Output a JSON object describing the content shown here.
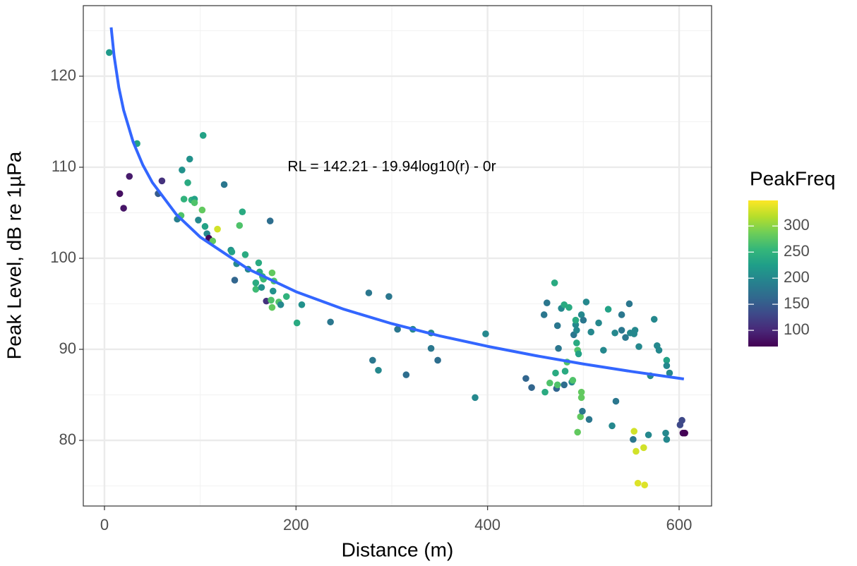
{
  "chart_data": {
    "type": "scatter",
    "x_label": "Distance (m)",
    "y_label": "Peak Level, dB re 1µPa",
    "annotation": "RL = 142.21 - 19.94log10(r) - 0r",
    "xlim": [
      -22.1,
      633.9
    ],
    "ylim": [
      72.79,
      127.75
    ],
    "xticks": [
      0,
      200,
      400,
      600
    ],
    "yticks": [
      80,
      90,
      100,
      110,
      120
    ],
    "xminor": [
      100,
      300,
      500
    ],
    "yminor": [
      75,
      85,
      95,
      105,
      115,
      125
    ],
    "grid": true,
    "x": [
      5,
      16,
      20,
      26,
      34,
      56,
      60,
      76,
      80,
      81,
      83,
      87,
      89,
      91,
      94,
      94,
      98,
      102,
      103,
      105,
      107,
      109,
      113,
      118,
      125,
      132,
      133,
      136,
      138,
      141,
      144,
      147,
      150,
      158,
      158,
      161,
      162,
      164,
      165,
      166,
      169,
      173,
      174,
      175,
      175,
      176,
      177,
      182,
      184,
      190,
      201,
      206,
      236,
      276,
      280,
      286,
      297,
      306,
      315,
      322,
      341,
      341,
      348,
      387,
      398,
      440,
      446,
      459,
      460,
      462,
      465,
      470,
      471,
      472,
      473,
      473,
      474,
      477,
      480,
      480,
      481,
      483,
      485,
      488,
      489,
      490,
      492,
      492,
      493,
      493,
      494,
      494,
      495,
      497,
      498,
      498,
      498,
      499,
      500,
      503,
      506,
      508,
      516,
      521,
      526,
      530,
      533,
      534,
      540,
      540,
      544,
      548,
      549,
      552,
      553,
      553,
      554,
      555,
      557,
      558,
      563,
      564,
      568,
      570,
      574,
      577,
      579,
      586,
      587,
      587,
      587,
      590,
      601,
      603,
      604,
      606
    ],
    "values": [
      122.6,
      107.1,
      105.5,
      109.0,
      112.6,
      107.1,
      108.5,
      104.3,
      104.7,
      109.7,
      106.5,
      108.3,
      110.9,
      106.4,
      106.5,
      106.1,
      104.2,
      105.3,
      113.5,
      103.5,
      102.7,
      102.2,
      101.9,
      103.2,
      108.1,
      100.9,
      100.7,
      97.6,
      99.4,
      103.6,
      105.1,
      100.4,
      98.8,
      97.3,
      96.6,
      99.5,
      98.5,
      96.8,
      98.0,
      97.7,
      95.3,
      104.1,
      95.4,
      94.6,
      98.4,
      96.4,
      97.5,
      95.2,
      94.9,
      95.8,
      92.9,
      94.9,
      93.0,
      96.2,
      88.8,
      87.7,
      95.8,
      92.2,
      87.2,
      92.2,
      91.8,
      90.1,
      88.8,
      84.7,
      91.7,
      86.8,
      85.8,
      93.8,
      85.3,
      95.1,
      86.3,
      97.3,
      87.4,
      85.7,
      92.6,
      86.1,
      90.1,
      94.5,
      94.9,
      86.1,
      87.6,
      88.6,
      94.6,
      86.4,
      86.6,
      91.6,
      92.7,
      93.2,
      90.7,
      92.1,
      89.9,
      80.9,
      89.5,
      82.6,
      93.8,
      85.3,
      84.7,
      83.2,
      93.2,
      95.2,
      82.3,
      91.9,
      92.9,
      89.9,
      94.4,
      81.6,
      91.8,
      84.3,
      93.8,
      92.1,
      91.3,
      95.0,
      91.8,
      80.1,
      81.0,
      91.7,
      92.1,
      78.8,
      75.3,
      90.3,
      79.2,
      75.1,
      80.6,
      87.1,
      93.3,
      90.4,
      89.9,
      80.8,
      88.8,
      80.1,
      88.2,
      87.4,
      81.7,
      82.2,
      80.8,
      80.8
    ],
    "color_values": [
      220,
      80,
      85,
      90,
      230,
      150,
      110,
      190,
      270,
      210,
      250,
      240,
      210,
      250,
      230,
      270,
      200,
      280,
      230,
      230,
      200,
      70,
      280,
      330,
      180,
      210,
      230,
      160,
      200,
      270,
      240,
      240,
      200,
      240,
      260,
      240,
      240,
      210,
      250,
      260,
      110,
      170,
      270,
      280,
      280,
      210,
      270,
      270,
      200,
      250,
      240,
      210,
      180,
      180,
      180,
      200,
      180,
      180,
      170,
      200,
      200,
      180,
      170,
      200,
      200,
      160,
      160,
      180,
      240,
      180,
      270,
      240,
      240,
      160,
      180,
      270,
      180,
      200,
      240,
      170,
      240,
      270,
      240,
      200,
      270,
      180,
      200,
      240,
      240,
      200,
      270,
      280,
      230,
      280,
      200,
      280,
      280,
      180,
      180,
      200,
      180,
      200,
      200,
      200,
      230,
      200,
      200,
      180,
      180,
      180,
      180,
      180,
      200,
      180,
      330,
      200,
      200,
      330,
      335,
      200,
      330,
      335,
      200,
      200,
      200,
      200,
      200,
      200,
      230,
      200,
      200,
      200,
      130,
      130,
      75,
      70
    ],
    "colorbar": {
      "title": "PeakFreq",
      "lim": [
        69,
        349
      ],
      "ticks": [
        100,
        150,
        200,
        250,
        300
      ],
      "colormap": [
        "#440154",
        "#482878",
        "#3e4989",
        "#31688e",
        "#26828e",
        "#1f9e89",
        "#35b779",
        "#6ece58",
        "#b5de2b",
        "#fde725"
      ]
    },
    "fit": {
      "color": "#3366ff",
      "x": [
        7,
        10,
        15,
        20,
        30,
        40,
        50,
        75,
        100,
        150,
        200,
        250,
        300,
        350,
        400,
        450,
        500,
        550,
        605
      ],
      "values": [
        125.36,
        122.27,
        118.76,
        116.27,
        112.76,
        110.26,
        108.33,
        104.82,
        102.33,
        98.82,
        96.33,
        94.4,
        92.82,
        91.48,
        90.33,
        89.31,
        88.39,
        87.57,
        86.74
      ]
    }
  }
}
